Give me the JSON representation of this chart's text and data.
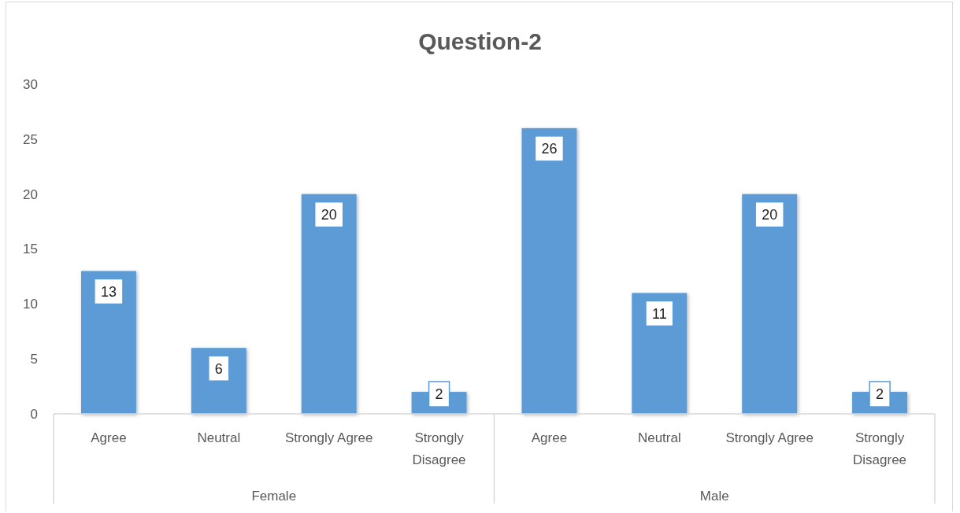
{
  "chart_data": {
    "type": "bar",
    "title": "Question-2",
    "categories": [
      "Agree",
      "Neutral",
      "Strongly Agree",
      "Strongly Disagree",
      "Agree",
      "Neutral",
      "Strongly Agree",
      "Strongly Disagree"
    ],
    "values": [
      13,
      6,
      20,
      2,
      26,
      11,
      20,
      2
    ],
    "color": "#5b9bd5",
    "ylim": [
      0,
      30
    ],
    "yticks": [
      0,
      5,
      10,
      15,
      20,
      25,
      30
    ],
    "data_labels": true,
    "annotations": [
      "Female",
      "Male"
    ]
  }
}
